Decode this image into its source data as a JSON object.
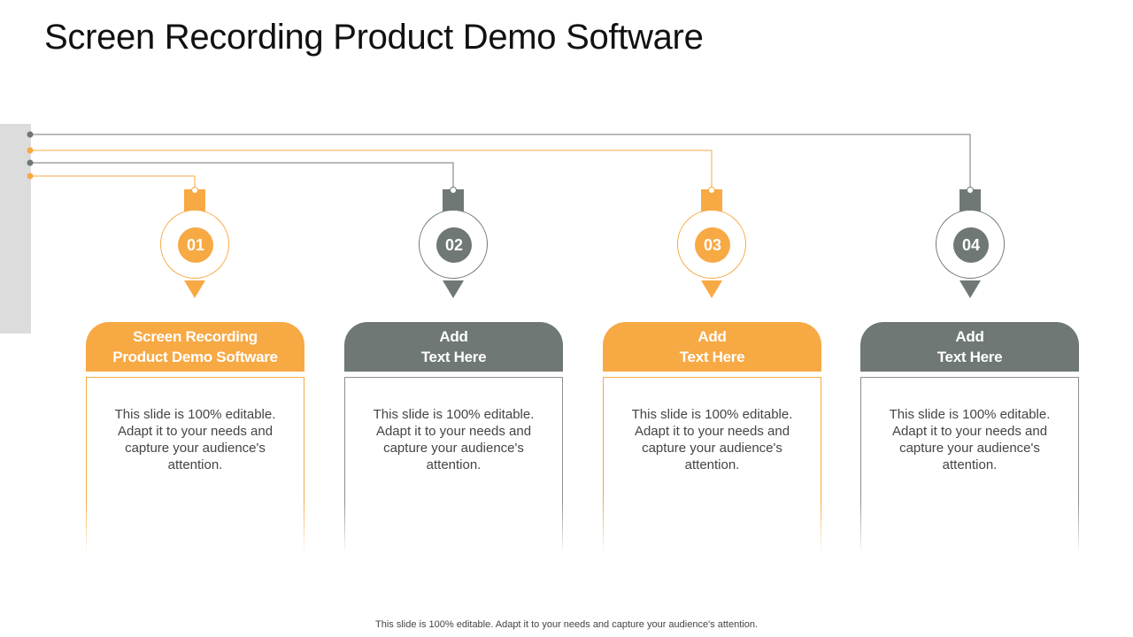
{
  "title": "Screen Recording Product Demo Software",
  "colors": {
    "orange": "#f7a944",
    "gray": "#6f7874",
    "side_bar": "#dcdcdc"
  },
  "steps": [
    {
      "number": "01",
      "header_line1": "Screen Recording",
      "header_line2": "Product Demo Software",
      "body": "This slide is 100% editable. Adapt it to your needs and capture your audience's attention.",
      "color": "orange"
    },
    {
      "number": "02",
      "header_line1": "Add",
      "header_line2": "Text Here",
      "body": "This slide is 100% editable. Adapt it to your needs and capture your audience's attention.",
      "color": "gray"
    },
    {
      "number": "03",
      "header_line1": "Add",
      "header_line2": "Text Here",
      "body": "This slide is 100% editable. Adapt it to your needs and capture your audience's attention.",
      "color": "orange"
    },
    {
      "number": "04",
      "header_line1": "Add",
      "header_line2": "Text Here",
      "body": "This slide is 100% editable. Adapt it to your needs and capture your audience's attention.",
      "color": "gray"
    }
  ],
  "footer": "This slide is 100% editable. Adapt it to your needs and capture your audience's attention."
}
